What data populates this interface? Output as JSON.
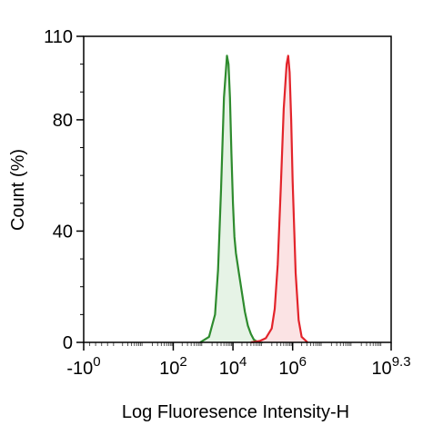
{
  "chart_data": {
    "type": "area",
    "title": "",
    "xlabel": "Log Fluoresence Intensity-H",
    "ylabel": "Count  (%)",
    "xscale": "log",
    "xlim": [
      -1,
      9.3
    ],
    "ylim": [
      0,
      110
    ],
    "grid": false,
    "legend": "none",
    "yticks": [
      {
        "value": 0,
        "label": "0"
      },
      {
        "value": 40,
        "label": "40"
      },
      {
        "value": 80,
        "label": "80"
      },
      {
        "value": 110,
        "label": "110"
      }
    ],
    "xticks": [
      {
        "value": -1,
        "base": "-10",
        "exp": "0"
      },
      {
        "value": 2,
        "base": "10",
        "exp": "2"
      },
      {
        "value": 4,
        "base": "10",
        "exp": "4"
      },
      {
        "value": 6,
        "base": "10",
        "exp": "6"
      },
      {
        "value": 9.3,
        "base": "10",
        "exp": "9.3"
      }
    ],
    "series": [
      {
        "color": "#2e8b2e",
        "fill": "#e6f3e6",
        "x": [
          2.9,
          3.2,
          3.4,
          3.5,
          3.6,
          3.7,
          3.8,
          3.85,
          3.9,
          3.95,
          4.0,
          4.05,
          4.1,
          4.2,
          4.3,
          4.4,
          4.5,
          4.6,
          4.7,
          4.8,
          5.0
        ],
        "y": [
          0,
          2,
          10,
          26,
          55,
          88,
          103,
          100,
          88,
          68,
          50,
          38,
          32,
          25,
          18,
          11,
          6,
          3,
          1,
          0.3,
          0
        ]
      },
      {
        "color": "#e3242b",
        "fill": "#fbe3e4",
        "x": [
          4.6,
          4.9,
          5.1,
          5.3,
          5.4,
          5.5,
          5.6,
          5.7,
          5.8,
          5.85,
          5.9,
          5.95,
          6.0,
          6.1,
          6.2,
          6.3,
          6.5
        ],
        "y": [
          0,
          0.5,
          1.5,
          5,
          12,
          28,
          55,
          84,
          100,
          103,
          97,
          80,
          58,
          25,
          8,
          2,
          0
        ]
      }
    ]
  }
}
